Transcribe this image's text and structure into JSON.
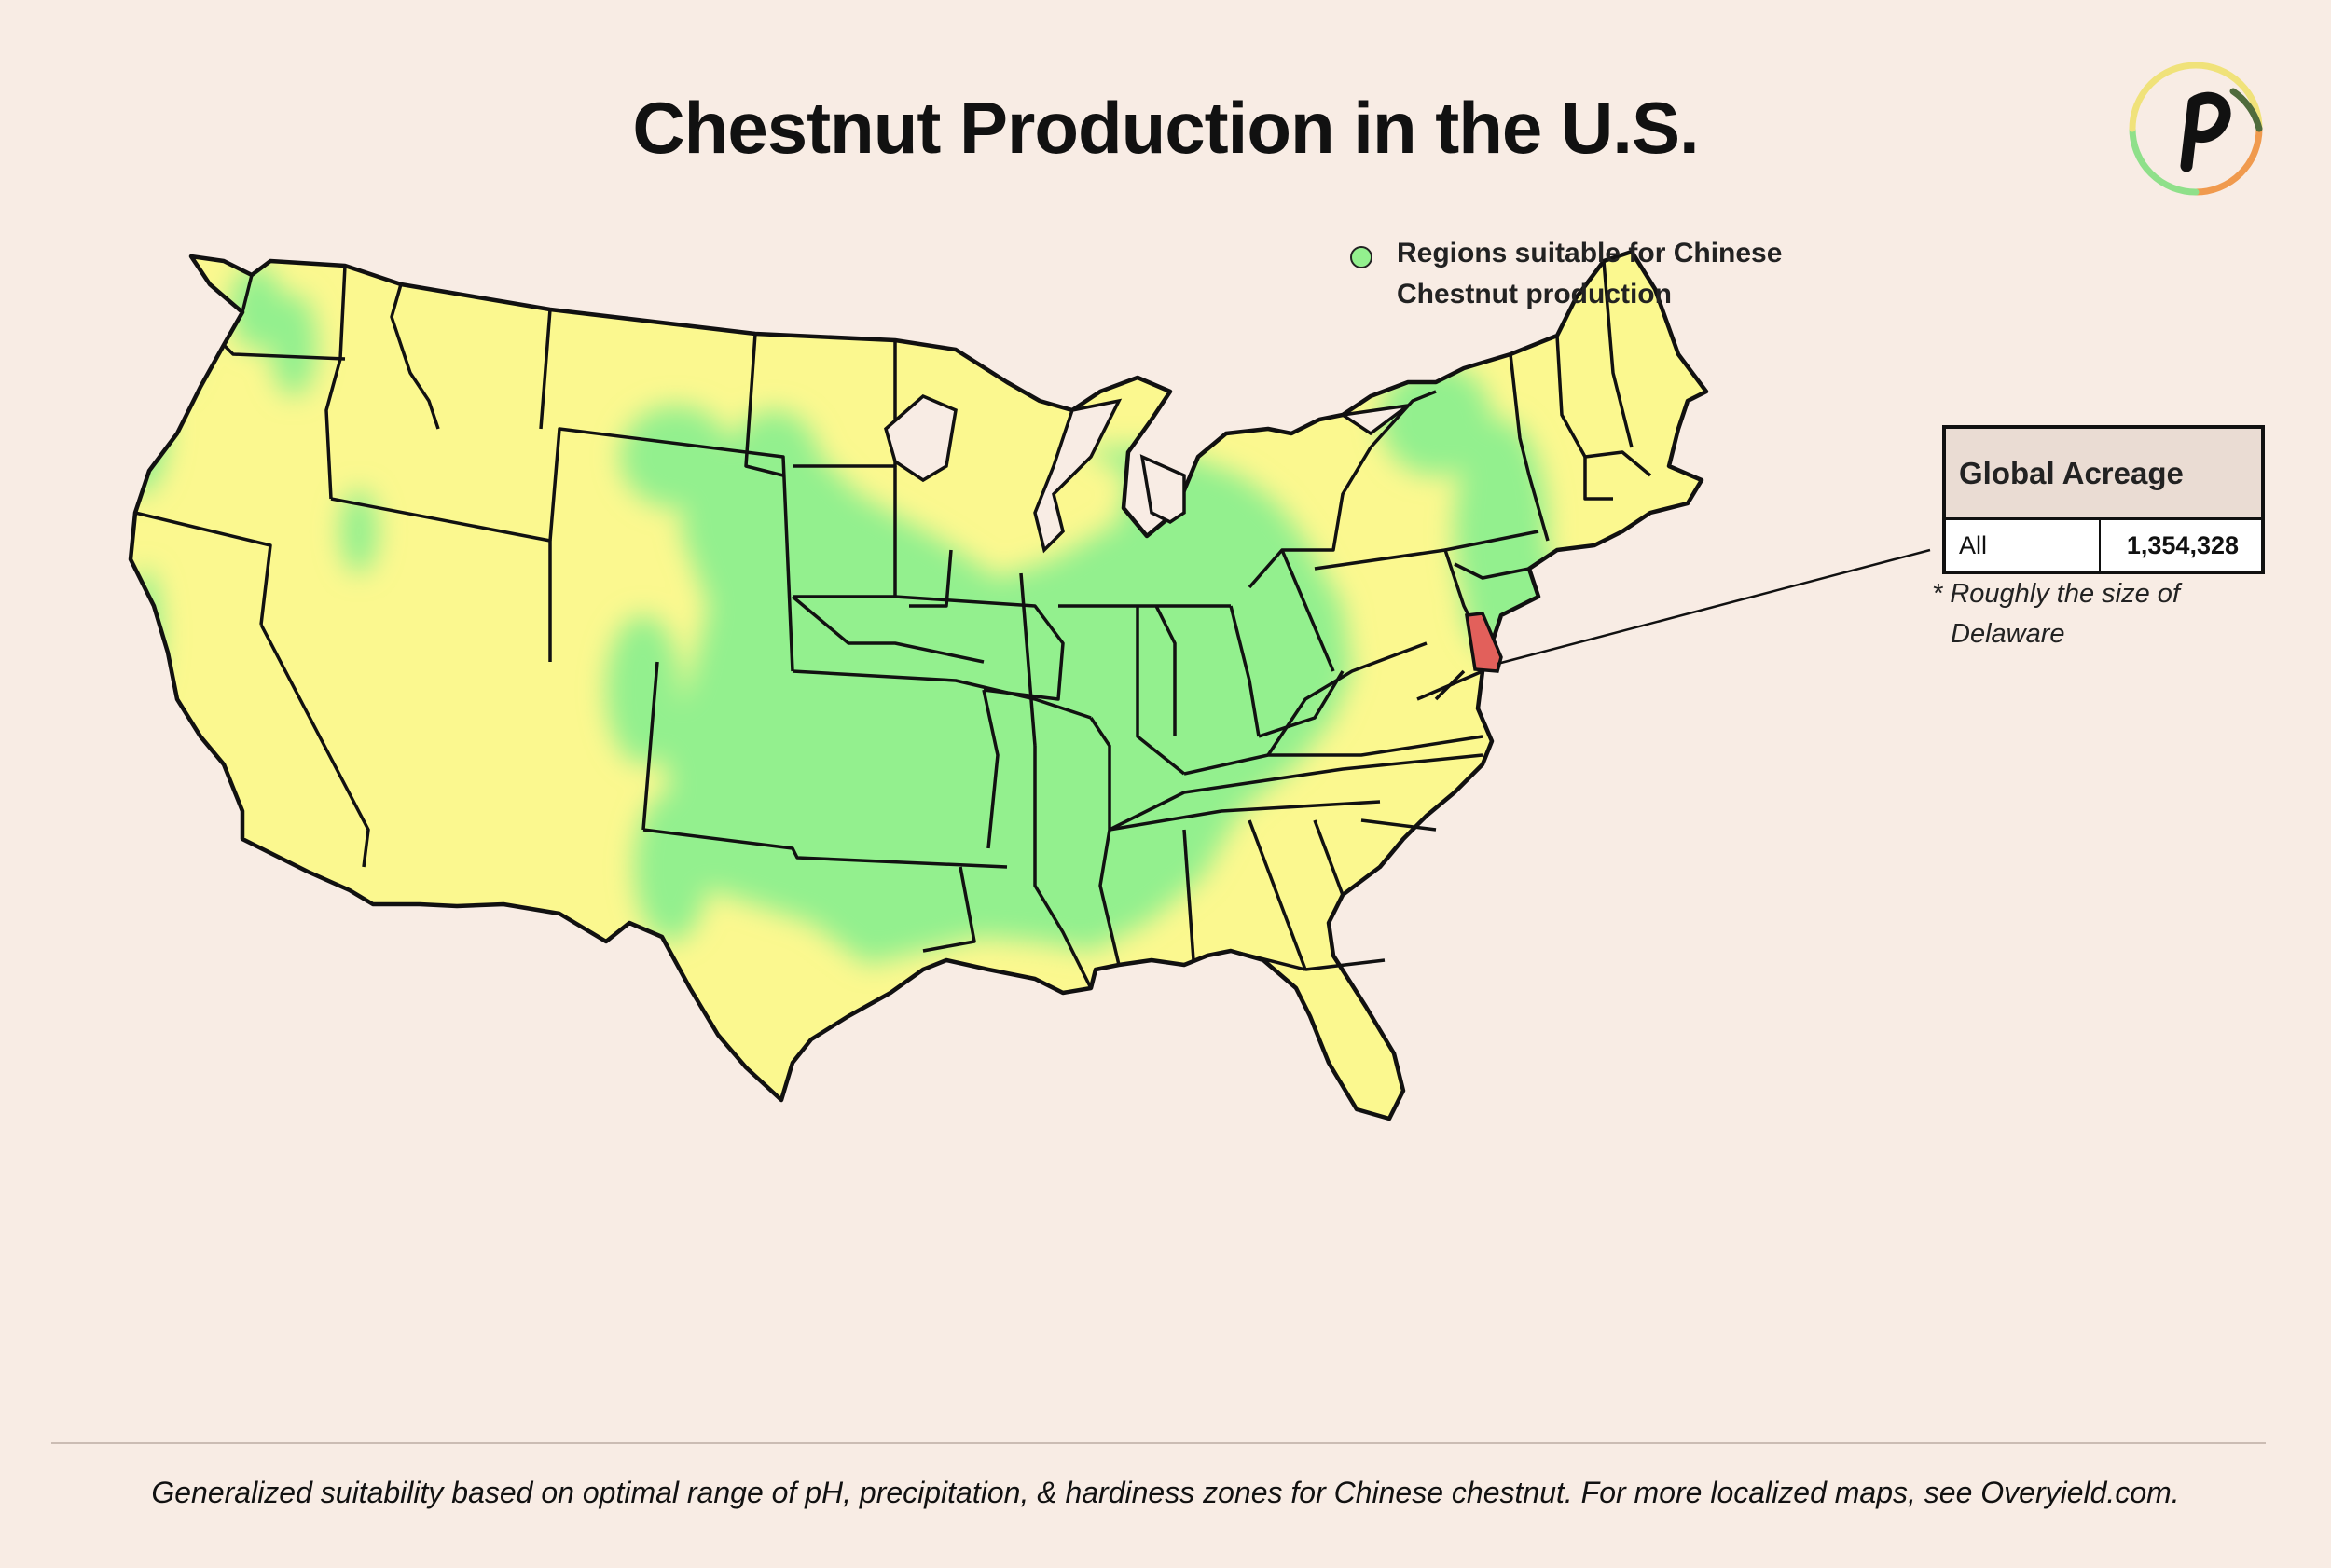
{
  "title": "Chestnut Production in the U.S.",
  "legend": {
    "label": "Regions suitable for Chinese Chestnut production",
    "color": "#93f08e"
  },
  "colors": {
    "background": "#f8ece4",
    "state_fill": "#fbf88f",
    "suitable_region": "#93f08e",
    "comparison_state": "#e2605b",
    "border": "#111111"
  },
  "acreage_table": {
    "header": "Global Acreage",
    "rows": [
      {
        "region": "All",
        "value": "1,354,328"
      }
    ]
  },
  "note": {
    "line1": "* Roughly the size of",
    "line2": "Delaware"
  },
  "highlighted_state": "Delaware",
  "footer": "Generalized suitability based on optimal range of pH, precipitation, & hardiness zones for Chinese chestnut.  For more localized maps, see Overyield.com.",
  "logo": {
    "icon": "overyield-p-logo-icon"
  }
}
